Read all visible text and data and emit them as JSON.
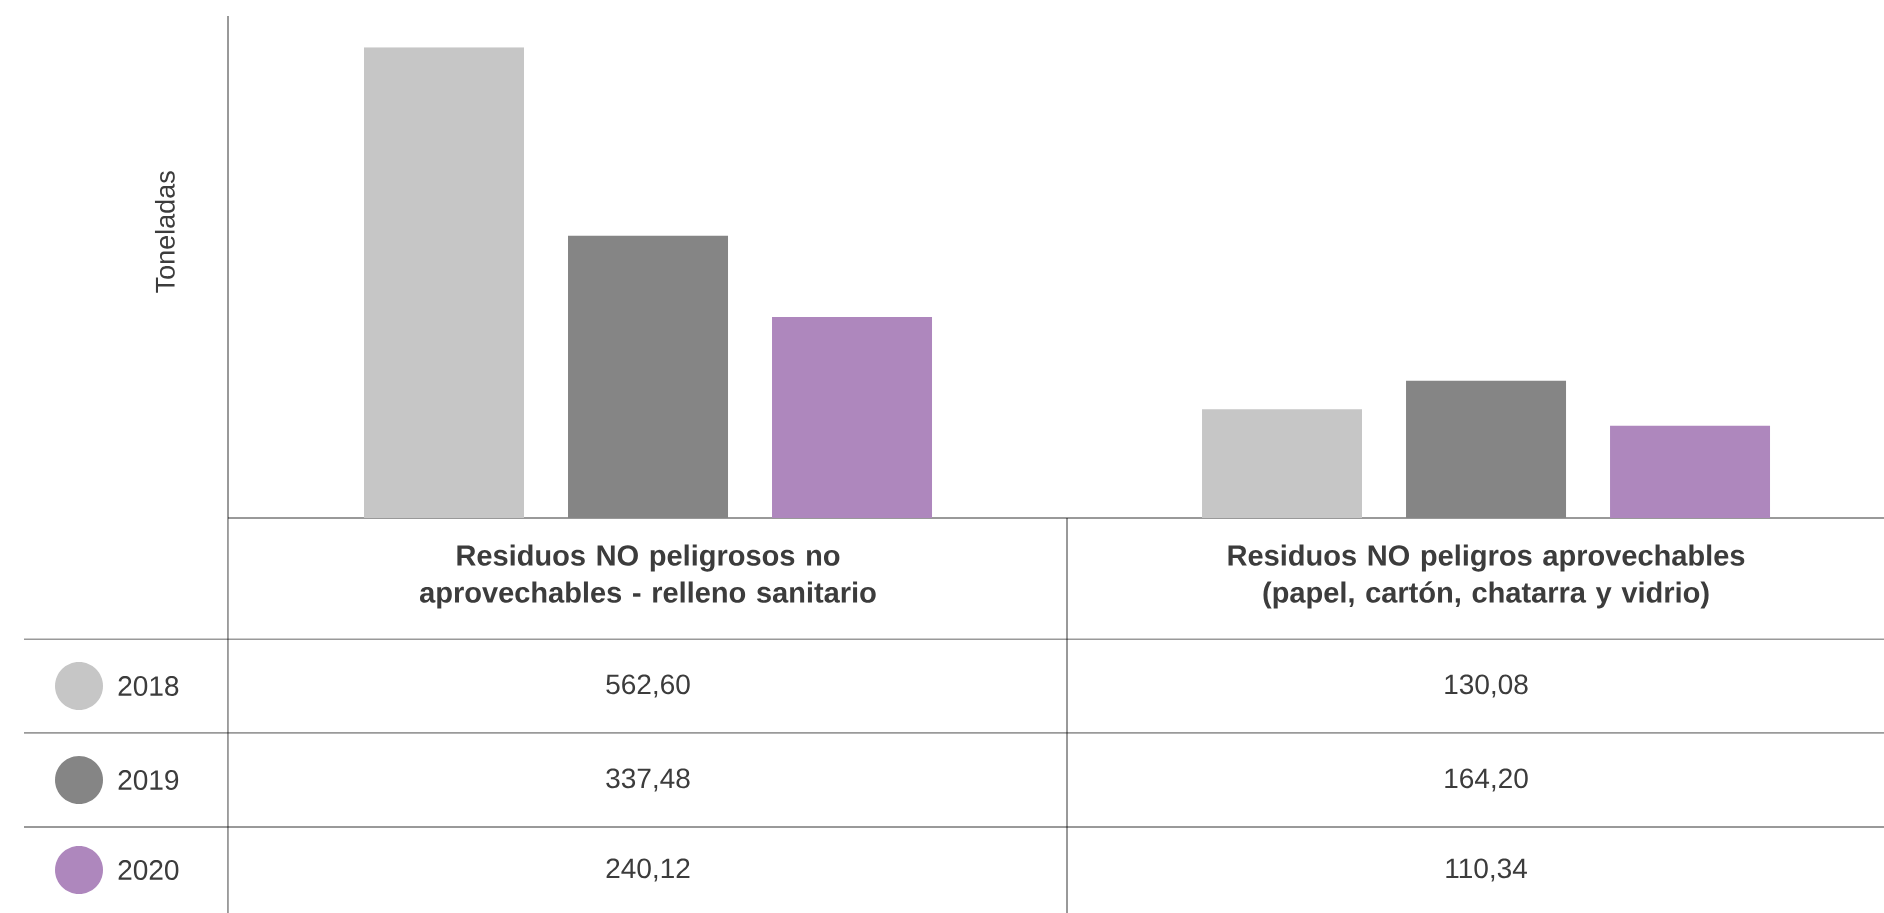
{
  "chart_data": {
    "type": "bar",
    "ylabel": "Toneladas",
    "categories": [
      "Residuos NO peligrosos no aprovechables - relleno sanitario",
      "Residuos NO peligros aprovechables (papel, cartón, chatarra y vidrio)"
    ],
    "series": [
      {
        "name": "2018",
        "color": "#c6c6c6",
        "values": [
          562.6,
          130.08
        ],
        "value_labels": [
          "562,60",
          "130,08"
        ]
      },
      {
        "name": "2019",
        "color": "#858585",
        "values": [
          337.48,
          164.2
        ],
        "value_labels": [
          "337,48",
          "164,20"
        ]
      },
      {
        "name": "2020",
        "color": "#ae87bd",
        "values": [
          240.12,
          110.34
        ],
        "value_labels": [
          "240,12",
          "110,34"
        ]
      }
    ],
    "ylim": [
      0,
      600
    ],
    "tick_labels": "x",
    "legend": "bottom left",
    "data_labels": true
  }
}
